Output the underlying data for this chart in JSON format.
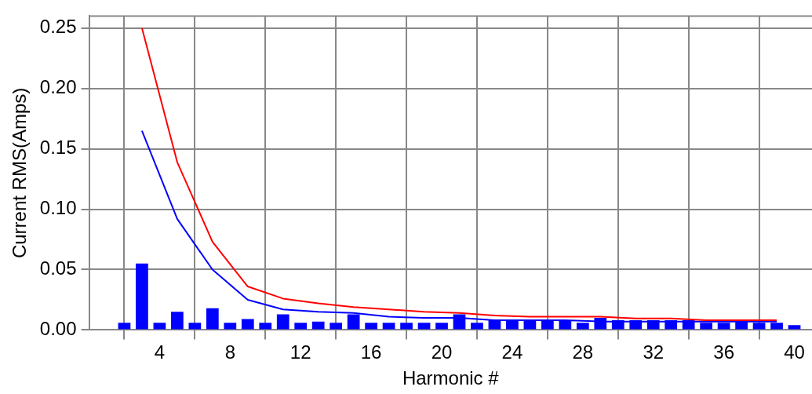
{
  "chart_data": {
    "type": "bar",
    "xlabel": "Harmonic #",
    "ylabel": "Current RMS(Amps)",
    "xlim": [
      0,
      41
    ],
    "xticks": [
      4,
      8,
      12,
      16,
      20,
      24,
      28,
      32,
      36,
      40
    ],
    "ylim": [
      0,
      0.26
    ],
    "yticks": [
      {
        "value": 0,
        "label": "0.00"
      },
      {
        "value": 0.05,
        "label": "0.05"
      },
      {
        "value": 0.1,
        "label": "0.10"
      },
      {
        "value": 0.15,
        "label": "0.15"
      },
      {
        "value": 0.2,
        "label": "0.20"
      },
      {
        "value": 0.25,
        "label": "0.25"
      }
    ],
    "grid": true,
    "legend": false,
    "series": [
      {
        "color": "#0000ff",
        "x": [
          2,
          3,
          4,
          5,
          6,
          7,
          8,
          9,
          10,
          11,
          12,
          13,
          14,
          15,
          16,
          17,
          18,
          19,
          20,
          21,
          22,
          23,
          24,
          25,
          26,
          27,
          28,
          29,
          30,
          31,
          32,
          33,
          34,
          35,
          36,
          37,
          38,
          39,
          40
        ],
        "values": [
          0.006,
          0.055,
          0.006,
          0.015,
          0.006,
          0.018,
          0.006,
          0.009,
          0.006,
          0.013,
          0.006,
          0.007,
          0.006,
          0.013,
          0.006,
          0.006,
          0.006,
          0.006,
          0.006,
          0.013,
          0.006,
          0.008,
          0.008,
          0.008,
          0.008,
          0.008,
          0.006,
          0.01,
          0.008,
          0.008,
          0.008,
          0.008,
          0.008,
          0.006,
          0.006,
          0.008,
          0.006,
          0.006,
          0.004
        ]
      },
      {
        "type": "line",
        "color": "#ff0000",
        "x": [
          3,
          5,
          7,
          9,
          11,
          13,
          15,
          17,
          19,
          21,
          23,
          25,
          27,
          29,
          31,
          33,
          35,
          37,
          39
        ],
        "values": [
          0.25,
          0.139,
          0.073,
          0.036,
          0.026,
          0.022,
          0.019,
          0.017,
          0.015,
          0.014,
          0.012,
          0.011,
          0.011,
          0.011,
          0.0095,
          0.0095,
          0.008,
          0.008,
          0.008
        ]
      },
      {
        "type": "line",
        "color": "#0000ff",
        "x": [
          3,
          5,
          7,
          9,
          11,
          13,
          15,
          17,
          19,
          21,
          23,
          25,
          27,
          29,
          31,
          33,
          35,
          37,
          39
        ],
        "values": [
          0.165,
          0.092,
          0.05,
          0.025,
          0.017,
          0.015,
          0.014,
          0.011,
          0.01,
          0.01,
          0.008,
          0.008,
          0.008,
          0.007,
          0.007,
          0.007,
          0.007,
          0.007,
          0.007
        ]
      }
    ]
  }
}
